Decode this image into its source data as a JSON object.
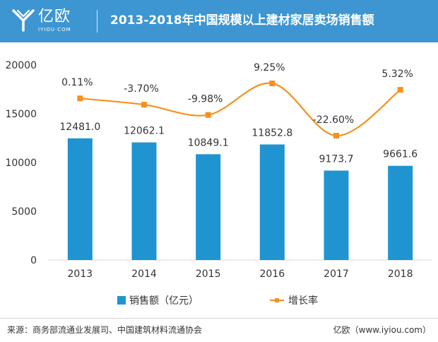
{
  "header": {
    "logo_text": "亿欧",
    "logo_sub": "IYIOU·COM",
    "title": "2013-2018年中国规模以上建材家居卖场销售额"
  },
  "colors": {
    "header_bg": "#3d96d2",
    "bar": "#1f94d1",
    "line": "#f5911e",
    "grid": "#d9d9d9",
    "text": "#333333"
  },
  "chart_data": {
    "type": "bar",
    "categories": [
      "2013",
      "2014",
      "2015",
      "2016",
      "2017",
      "2018"
    ],
    "series": [
      {
        "name": "销售额（亿元）",
        "type": "bar",
        "axis": "left",
        "values": [
          12481.0,
          12062.1,
          10849.1,
          11852.8,
          9173.7,
          9661.6
        ],
        "labels": [
          "12481.0",
          "12062.1",
          "10849.1",
          "11852.8",
          "9173.7",
          "9661.6"
        ]
      },
      {
        "name": "增长率",
        "type": "line",
        "smooth": true,
        "values": [
          0.11,
          -3.7,
          -9.98,
          9.25,
          -22.6,
          5.32
        ],
        "labels": [
          "0.11%",
          "-3.70%",
          "-9.98%",
          "9.25%",
          "-22.60%",
          "5.32%"
        ]
      }
    ],
    "ylim": [
      0,
      20000
    ],
    "yticks": [
      "0",
      "5000",
      "10000",
      "15000",
      "20000"
    ],
    "grid": false,
    "legend": "bottom"
  },
  "footer": {
    "source": "来源：商务部流通业发展司、中国建筑材料流通协会",
    "brand": "亿欧（www.iyiou.com）"
  }
}
